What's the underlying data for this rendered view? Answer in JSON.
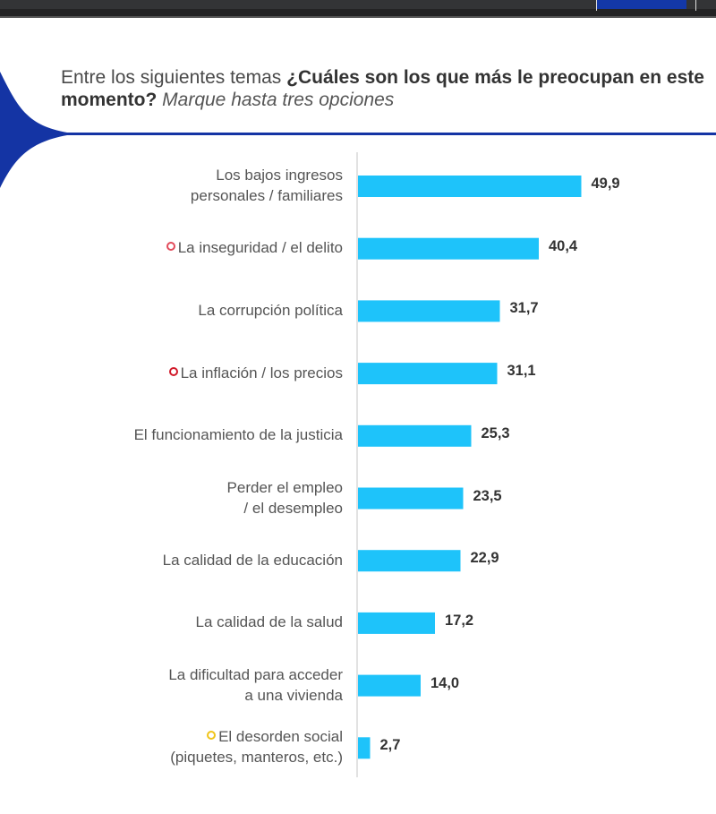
{
  "window": {
    "accent_color": "#1338a8"
  },
  "header": {
    "title_plain": "Entre los siguientes temas ",
    "title_bold": "¿Cuáles son los que más le preocupan en este momento?",
    "title_italic": " Marque hasta tres opciones"
  },
  "colors": {
    "bar": "#1ec3fa",
    "brand_blue": "#1434a4",
    "marker_red_light": "#e24a5a",
    "marker_red_dark": "#d11a2a",
    "marker_yellow": "#f0c419"
  },
  "chart_data": {
    "type": "bar",
    "orientation": "horizontal",
    "title": "Entre los siguientes temas ¿Cuáles son los que más le preocupan en este momento? Marque hasta tres opciones",
    "xlabel": "",
    "ylabel": "",
    "xlim": [
      0,
      50
    ],
    "grid": false,
    "categories": [
      "Los bajos ingresos personales / familiares",
      "La inseguridad / el delito",
      "La corrupción política",
      "La inflación / los precios",
      "El funcionamiento de la justicia",
      "Perder el empleo / el desempleo",
      "La calidad de la educación",
      "La calidad de la salud",
      "La dificultad para acceder a una vivienda",
      "El desorden social (piquetes, manteros, etc.)"
    ],
    "label_lines": [
      [
        "Los bajos ingresos",
        "personales / familiares"
      ],
      [
        "La inseguridad / el delito"
      ],
      [
        "La corrupción política"
      ],
      [
        "La inflación / los precios"
      ],
      [
        "El funcionamiento de la justicia"
      ],
      [
        "Perder el empleo",
        "/ el desempleo"
      ],
      [
        "La calidad de la educación"
      ],
      [
        "La calidad de la salud"
      ],
      [
        "La dificultad para acceder",
        "a una vivienda"
      ],
      [
        "El desorden social",
        "(piquetes, manteros, etc.)"
      ]
    ],
    "markers": [
      null,
      "red-light",
      null,
      "red-dark",
      null,
      null,
      null,
      null,
      null,
      "yellow"
    ],
    "values": [
      49.9,
      40.4,
      31.7,
      31.1,
      25.3,
      23.5,
      22.9,
      17.2,
      14.0,
      2.7
    ],
    "value_labels": [
      "49,9",
      "40,4",
      "31,7",
      "31,1",
      "25,3",
      "23,5",
      "22,9",
      "17,2",
      "14,0",
      "2,7"
    ]
  }
}
